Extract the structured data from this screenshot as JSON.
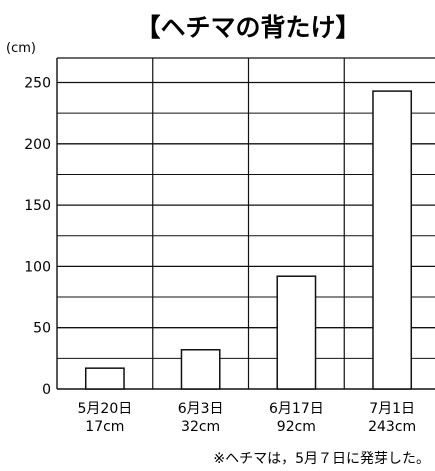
{
  "chart_data": {
    "type": "bar",
    "title": "【ヘチマの背たけ】",
    "ylabel": "(cm)",
    "xlabel": "",
    "ylim": [
      0,
      270
    ],
    "yticks": [
      0,
      50,
      100,
      150,
      200,
      250
    ],
    "grid": "horizontal every 25, vertical separators between categories",
    "categories": [
      "5月20日",
      "6月3日",
      "6月17日",
      "7月1日"
    ],
    "value_labels": [
      "17cm",
      "32cm",
      "92cm",
      "243cm"
    ],
    "values": [
      17,
      32,
      92,
      243
    ],
    "colors": {
      "bar_fill": "#ffffff",
      "bar_stroke": "#111111",
      "grid": "#111111"
    },
    "annotation": "※ヘチマは，5月７日に発芽した。"
  }
}
